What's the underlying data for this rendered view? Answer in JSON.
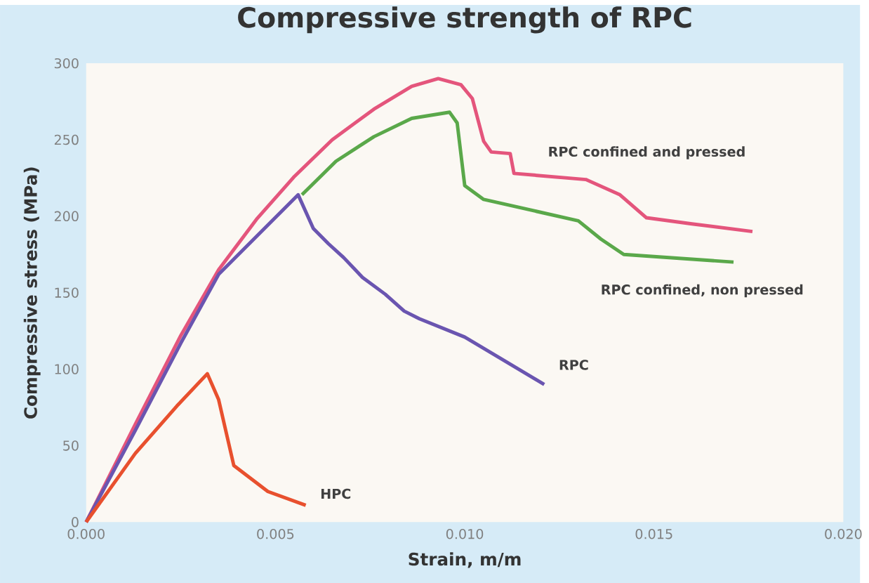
{
  "chart_data": {
    "type": "line",
    "title": "Compressive strength of RPC",
    "xlabel": "Strain, m/m",
    "ylabel": "Compressive stress (MPa)",
    "xlim": [
      0,
      0.02
    ],
    "ylim": [
      0,
      300
    ],
    "xticks": [
      {
        "value": 0,
        "label": "0.000"
      },
      {
        "value": 0.005,
        "label": "0.005"
      },
      {
        "value": 0.01,
        "label": "0.010"
      },
      {
        "value": 0.015,
        "label": "0.015"
      },
      {
        "value": 0.02,
        "label": "0.020"
      }
    ],
    "yticks": [
      0,
      50,
      100,
      150,
      200,
      250,
      300
    ],
    "grid": false,
    "marker": "none",
    "line_style": "solid",
    "series": [
      {
        "name": "RPC confined and pressed",
        "color": "#e4557c",
        "x": [
          0,
          0.0013,
          0.0025,
          0.0035,
          0.0045,
          0.0055,
          0.0065,
          0.0076,
          0.0086,
          0.0093,
          0.0099,
          0.0102,
          0.0105,
          0.0107,
          0.0112,
          0.0113,
          0.0132,
          0.0141,
          0.0148,
          0.016,
          0.0176
        ],
        "values": [
          0,
          64,
          122,
          165,
          198,
          226,
          250,
          270,
          285,
          290,
          286,
          277,
          249,
          242,
          241,
          228,
          224,
          214,
          199,
          195,
          190
        ]
      },
      {
        "name": "RPC confined, non pressed",
        "color": "#5aa84a",
        "x": [
          0.0057,
          0.0066,
          0.0076,
          0.0086,
          0.0096,
          0.0098,
          0.01,
          0.0105,
          0.013,
          0.0136,
          0.0142,
          0.0171
        ],
        "values": [
          214,
          236,
          252,
          264,
          268,
          261,
          220,
          211,
          197,
          185,
          175,
          170
        ]
      },
      {
        "name": "RPC",
        "color": "#6a55b0",
        "x": [
          0,
          0.0013,
          0.0025,
          0.0035,
          0.0056,
          0.006,
          0.0064,
          0.0068,
          0.0073,
          0.0079,
          0.0084,
          0.0088,
          0.01,
          0.0121
        ],
        "values": [
          0,
          60,
          117,
          162,
          214,
          192,
          182,
          173,
          160,
          149,
          138,
          133,
          121,
          90
        ]
      },
      {
        "name": "HPC",
        "color": "#e8502e",
        "x": [
          0,
          0.0013,
          0.0024,
          0.0032,
          0.0035,
          0.0039,
          0.0048,
          0.0058
        ],
        "values": [
          0,
          45,
          76,
          97,
          80,
          37,
          20,
          11
        ]
      }
    ]
  }
}
